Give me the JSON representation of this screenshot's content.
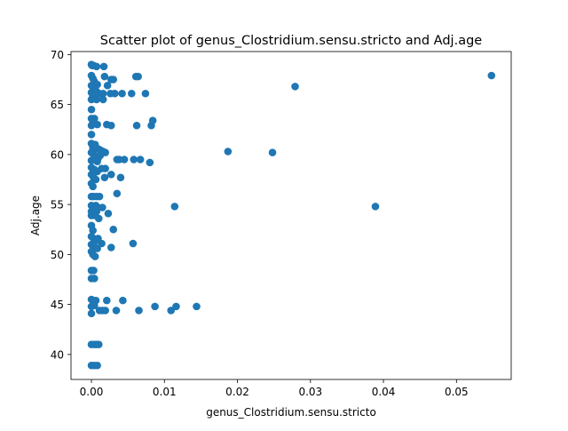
{
  "chart_data": {
    "type": "scatter",
    "title": "Scatter plot of genus_Clostridium.sensu.stricto and Adj.age",
    "xlabel": "genus_Clostridium.sensu.stricto",
    "ylabel": "Adj.age",
    "xlim": [
      -0.0028,
      0.0575
    ],
    "ylim": [
      37.5,
      70.3
    ],
    "xticks": [
      0.0,
      0.01,
      0.02,
      0.03,
      0.04,
      0.05
    ],
    "xtick_labels": [
      "0.00",
      "0.01",
      "0.02",
      "0.03",
      "0.04",
      "0.05"
    ],
    "yticks": [
      40,
      45,
      50,
      55,
      60,
      65,
      70
    ],
    "ytick_labels": [
      "40",
      "45",
      "50",
      "55",
      "60",
      "65",
      "70"
    ],
    "grid": false,
    "color": "#1f77b4",
    "series": [
      {
        "points": [
          [
            0.0,
            69.0
          ],
          [
            0.0001,
            68.9
          ],
          [
            0.0003,
            68.9
          ],
          [
            0.0007,
            68.8
          ],
          [
            0.0017,
            68.8
          ],
          [
            0.0,
            67.9
          ],
          [
            0.0002,
            67.6
          ],
          [
            0.0004,
            67.3
          ],
          [
            0.0008,
            67.0
          ],
          [
            0.0018,
            67.8
          ],
          [
            0.0064,
            67.8
          ],
          [
            0.0061,
            67.8
          ],
          [
            0.0,
            66.9
          ],
          [
            0.0003,
            66.6
          ],
          [
            0.0006,
            66.4
          ],
          [
            0.0,
            66.2
          ],
          [
            0.0002,
            65.8
          ],
          [
            0.0011,
            66.1
          ],
          [
            0.0016,
            66.1
          ],
          [
            0.0022,
            66.9
          ],
          [
            0.0027,
            67.5
          ],
          [
            0.003,
            67.5
          ],
          [
            0.0026,
            66.1
          ],
          [
            0.0032,
            66.1
          ],
          [
            0.0042,
            66.1
          ],
          [
            0.0055,
            66.1
          ],
          [
            0.0074,
            66.1
          ],
          [
            0.0,
            65.5
          ],
          [
            0.0007,
            65.5
          ],
          [
            0.0016,
            65.5
          ],
          [
            0.0,
            64.5
          ],
          [
            0.0,
            63.6
          ],
          [
            0.0002,
            63.3
          ],
          [
            0.0004,
            63.6
          ],
          [
            0.0008,
            63.0
          ],
          [
            0.0,
            62.9
          ],
          [
            0.0021,
            63.0
          ],
          [
            0.0027,
            62.9
          ],
          [
            0.0062,
            62.9
          ],
          [
            0.0082,
            62.9
          ],
          [
            0.0084,
            63.4
          ],
          [
            0.0,
            62.0
          ],
          [
            0.0,
            61.1
          ],
          [
            0.0002,
            60.7
          ],
          [
            0.0004,
            60.5
          ],
          [
            0.0005,
            61.0
          ],
          [
            0.0008,
            60.6
          ],
          [
            0.0011,
            60.5
          ],
          [
            0.0013,
            60.4
          ],
          [
            0.0,
            60.2
          ],
          [
            0.0003,
            60.0
          ],
          [
            0.0006,
            59.8
          ],
          [
            0.0009,
            59.6
          ],
          [
            0.0012,
            59.9
          ],
          [
            0.0016,
            60.3
          ],
          [
            0.0019,
            60.2
          ],
          [
            0.0,
            59.4
          ],
          [
            0.0004,
            59.5
          ],
          [
            0.0008,
            59.3
          ],
          [
            0.0035,
            59.5
          ],
          [
            0.0038,
            59.5
          ],
          [
            0.0045,
            59.5
          ],
          [
            0.0058,
            59.5
          ],
          [
            0.0067,
            59.5
          ],
          [
            0.008,
            59.2
          ],
          [
            0.0187,
            60.3
          ],
          [
            0.0248,
            60.2
          ],
          [
            0.0,
            58.7
          ],
          [
            0.0004,
            58.5
          ],
          [
            0.0008,
            58.3
          ],
          [
            0.0014,
            58.6
          ],
          [
            0.0019,
            58.6
          ],
          [
            0.0027,
            58.0
          ],
          [
            0.0,
            58.0
          ],
          [
            0.0003,
            57.7
          ],
          [
            0.0006,
            57.5
          ],
          [
            0.0018,
            57.7
          ],
          [
            0.004,
            57.7
          ],
          [
            0.0,
            57.1
          ],
          [
            0.0002,
            56.8
          ],
          [
            0.0,
            55.8
          ],
          [
            0.0003,
            55.8
          ],
          [
            0.0007,
            55.8
          ],
          [
            0.0011,
            55.8
          ],
          [
            0.0035,
            56.1
          ],
          [
            0.0,
            54.9
          ],
          [
            0.0003,
            54.7
          ],
          [
            0.0006,
            54.9
          ],
          [
            0.0009,
            54.7
          ],
          [
            0.0015,
            54.7
          ],
          [
            0.0,
            54.3
          ],
          [
            0.0003,
            54.1
          ],
          [
            0.0007,
            54.3
          ],
          [
            0.0023,
            54.1
          ],
          [
            0.0114,
            54.8
          ],
          [
            0.0389,
            54.8
          ],
          [
            0.0,
            53.9
          ],
          [
            0.0005,
            53.9
          ],
          [
            0.001,
            53.6
          ],
          [
            0.0,
            52.9
          ],
          [
            0.0002,
            52.4
          ],
          [
            0.003,
            52.5
          ],
          [
            0.0,
            51.8
          ],
          [
            0.0003,
            51.6
          ],
          [
            0.0006,
            51.4
          ],
          [
            0.0009,
            51.6
          ],
          [
            0.0014,
            51.1
          ],
          [
            0.0,
            51.0
          ],
          [
            0.0004,
            50.8
          ],
          [
            0.0008,
            50.6
          ],
          [
            0.0057,
            51.1
          ],
          [
            0.0027,
            50.7
          ],
          [
            0.0,
            50.3
          ],
          [
            0.0002,
            50.0
          ],
          [
            0.0005,
            49.8
          ],
          [
            0.0,
            48.4
          ],
          [
            0.0003,
            48.4
          ],
          [
            0.0,
            47.6
          ],
          [
            0.0004,
            47.6
          ],
          [
            0.0,
            45.5
          ],
          [
            0.0003,
            45.3
          ],
          [
            0.0006,
            45.4
          ],
          [
            0.0,
            44.8
          ],
          [
            0.0004,
            44.9
          ],
          [
            0.0,
            44.1
          ],
          [
            0.0011,
            44.4
          ],
          [
            0.0015,
            44.4
          ],
          [
            0.0019,
            44.4
          ],
          [
            0.0021,
            45.4
          ],
          [
            0.0034,
            44.4
          ],
          [
            0.0043,
            45.4
          ],
          [
            0.0065,
            44.4
          ],
          [
            0.0087,
            44.8
          ],
          [
            0.0109,
            44.4
          ],
          [
            0.0116,
            44.8
          ],
          [
            0.0144,
            44.8
          ],
          [
            0.0,
            41.0
          ],
          [
            0.0004,
            41.0
          ],
          [
            0.0007,
            41.0
          ],
          [
            0.001,
            41.0
          ],
          [
            0.0,
            38.9
          ],
          [
            0.0004,
            38.9
          ],
          [
            0.0008,
            38.9
          ],
          [
            0.0279,
            66.8
          ],
          [
            0.0548,
            67.9
          ]
        ]
      }
    ]
  }
}
